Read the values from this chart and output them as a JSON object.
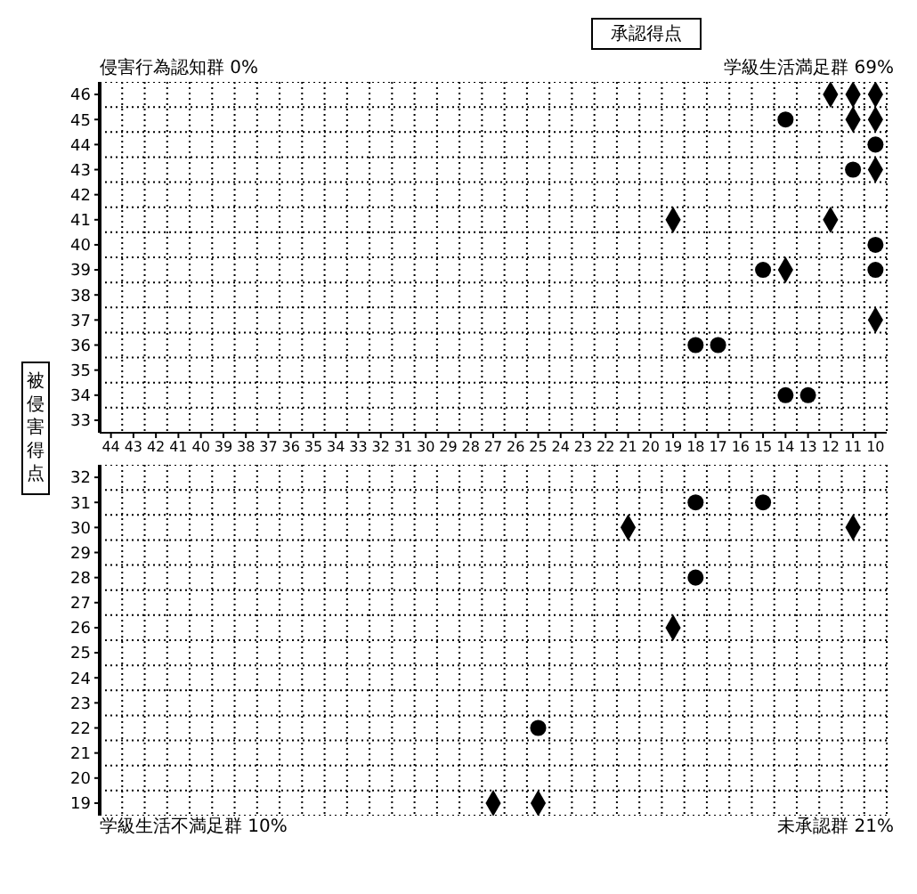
{
  "chart_data": [
    {
      "type": "scatter",
      "xlabel": "承認得点",
      "ylabel": "被侵害得点",
      "annotations": [
        "侵害行為認知群 0%",
        "学級生活満足群 69%"
      ],
      "xlim": [
        44.5,
        9.5
      ],
      "xticks": [
        44,
        43,
        42,
        41,
        40,
        39,
        38,
        37,
        36,
        35,
        34,
        33,
        32,
        31,
        30,
        29,
        28,
        27,
        26,
        25,
        24,
        23,
        22,
        21,
        20,
        19,
        18,
        17,
        16,
        15,
        14,
        13,
        12,
        11,
        10
      ],
      "ylim": [
        32.5,
        46.5
      ],
      "yticks": [
        46,
        45,
        44,
        43,
        42,
        41,
        40,
        39,
        38,
        37,
        36,
        35,
        34,
        33
      ],
      "grid": true,
      "series": [
        {
          "color": "#000000",
          "marker": "circle",
          "x": [
            14,
            10,
            11,
            10,
            15,
            10,
            18,
            17,
            14,
            13
          ],
          "values": [
            45,
            44,
            43,
            40,
            39,
            39,
            36,
            36,
            34,
            34
          ]
        },
        {
          "color": "#000000",
          "marker": "diamond",
          "x": [
            12,
            11,
            10,
            11,
            10,
            10,
            19,
            12,
            14,
            10
          ],
          "values": [
            46,
            46,
            46,
            45,
            45,
            43,
            41,
            41,
            39,
            37
          ]
        }
      ]
    },
    {
      "type": "scatter",
      "annotations": [
        "学級生活不満足群 10%",
        "未承認群 21%"
      ],
      "xlim": [
        44.5,
        9.5
      ],
      "ylim": [
        18.5,
        32.5
      ],
      "yticks": [
        32,
        31,
        30,
        29,
        28,
        27,
        26,
        25,
        24,
        23,
        22,
        21,
        20,
        19
      ],
      "grid": true,
      "tick_labels": "y",
      "series": [
        {
          "color": "#000000",
          "marker": "circle",
          "x": [
            18,
            15,
            18,
            25
          ],
          "values": [
            31,
            31,
            28,
            22
          ]
        },
        {
          "color": "#000000",
          "marker": "diamond",
          "x": [
            21,
            11,
            19,
            27,
            25
          ],
          "values": [
            30,
            30,
            26,
            19,
            19
          ]
        }
      ]
    }
  ]
}
